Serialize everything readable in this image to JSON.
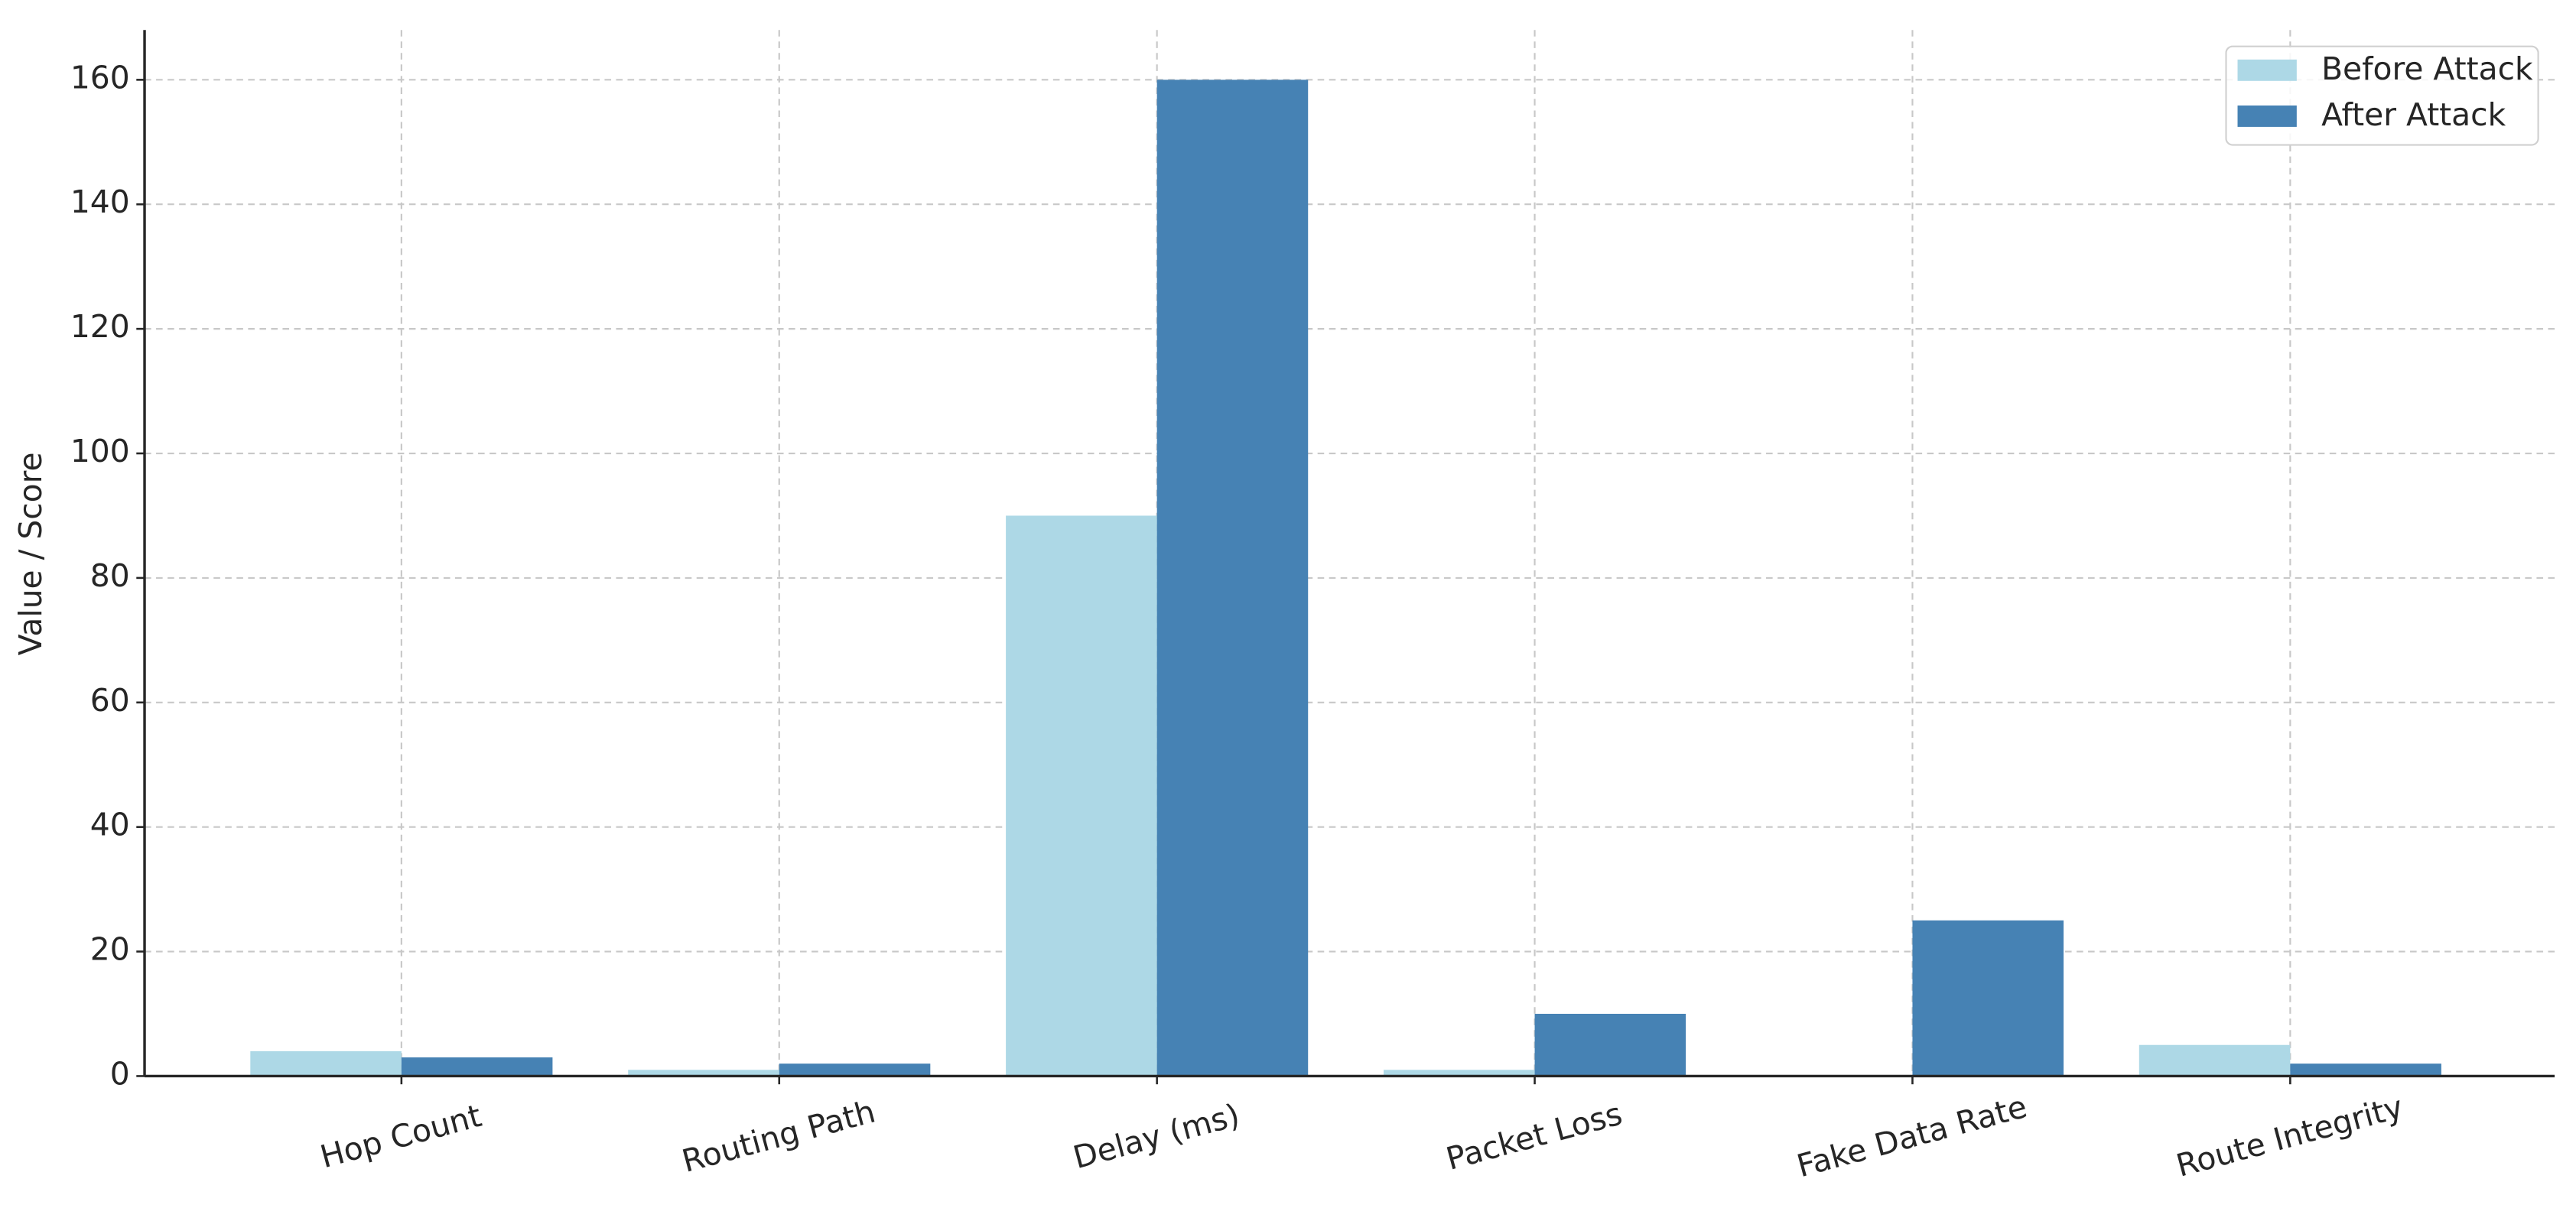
{
  "chart_data": {
    "type": "bar",
    "categories": [
      "Hop Count",
      "Routing Path",
      "Delay (ms)",
      "Packet Loss",
      "Fake Data Rate",
      "Route Integrity"
    ],
    "series": [
      {
        "name": "Before Attack",
        "color": "#add8e6",
        "values": [
          4,
          1,
          90,
          1,
          0,
          5
        ]
      },
      {
        "name": "After Attack",
        "color": "#4682b4",
        "values": [
          3,
          2,
          160,
          10,
          25,
          2
        ]
      }
    ],
    "y_label": "Value / Score",
    "ylim": [
      0,
      168
    ],
    "yticks": [
      0,
      20,
      40,
      60,
      80,
      100,
      120,
      140,
      160
    ],
    "grid": true,
    "legend": "upper right"
  }
}
